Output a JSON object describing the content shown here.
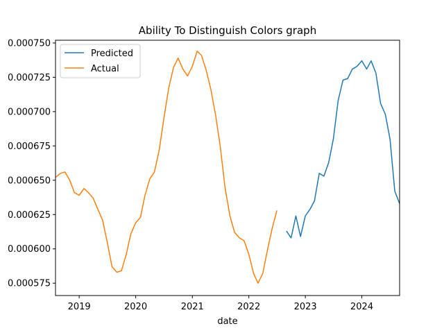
{
  "chart_data": {
    "type": "line",
    "title": "Ability To Distinguish Colors graph",
    "xlabel": "date",
    "ylabel": "",
    "xlim": [
      "2018-08-01",
      "2024-09-01"
    ],
    "ylim": [
      0.000566,
      0.000752
    ],
    "x_ticks": [
      "2019",
      "2020",
      "2021",
      "2022",
      "2023",
      "2024"
    ],
    "y_ticks": [
      "0.000575",
      "0.000600",
      "0.000625",
      "0.000650",
      "0.000675",
      "0.000700",
      "0.000725",
      "0.000750"
    ],
    "legend_position": "top-left",
    "grid": false,
    "series": [
      {
        "name": "Predicted",
        "color": "#1f77b4",
        "points": [
          [
            "2022-09-01",
            0.000613
          ],
          [
            "2022-10-01",
            0.000608
          ],
          [
            "2022-11-01",
            0.000624
          ],
          [
            "2022-12-01",
            0.000609
          ],
          [
            "2023-01-01",
            0.000624
          ],
          [
            "2023-02-01",
            0.000629
          ],
          [
            "2023-03-01",
            0.000635
          ],
          [
            "2023-04-01",
            0.000655
          ],
          [
            "2023-05-01",
            0.000653
          ],
          [
            "2023-06-01",
            0.000663
          ],
          [
            "2023-07-01",
            0.00068
          ],
          [
            "2023-08-01",
            0.000708
          ],
          [
            "2023-09-01",
            0.000723
          ],
          [
            "2023-10-01",
            0.000724
          ],
          [
            "2023-11-01",
            0.000731
          ],
          [
            "2023-12-01",
            0.000733
          ],
          [
            "2024-01-01",
            0.000737
          ],
          [
            "2024-02-01",
            0.000731
          ],
          [
            "2024-03-01",
            0.000737
          ],
          [
            "2024-04-01",
            0.000728
          ],
          [
            "2024-05-01",
            0.000706
          ],
          [
            "2024-06-01",
            0.000698
          ],
          [
            "2024-07-01",
            0.00068
          ],
          [
            "2024-08-01",
            0.000642
          ],
          [
            "2024-09-01",
            0.000633
          ],
          [
            "2024-10-01",
            0.000616
          ]
        ]
      },
      {
        "name": "Actual",
        "color": "#ff7f0e",
        "points": [
          [
            "2018-08-01",
            0.000652
          ],
          [
            "2018-09-01",
            0.000655
          ],
          [
            "2018-10-01",
            0.000656
          ],
          [
            "2018-11-01",
            0.00065
          ],
          [
            "2018-12-01",
            0.000641
          ],
          [
            "2019-01-01",
            0.000639
          ],
          [
            "2019-02-01",
            0.000644
          ],
          [
            "2019-03-01",
            0.000641
          ],
          [
            "2019-04-01",
            0.000637
          ],
          [
            "2019-05-01",
            0.000629
          ],
          [
            "2019-06-01",
            0.000621
          ],
          [
            "2019-07-01",
            0.000605
          ],
          [
            "2019-08-01",
            0.000587
          ],
          [
            "2019-09-01",
            0.000583
          ],
          [
            "2019-10-01",
            0.000584
          ],
          [
            "2019-11-01",
            0.000596
          ],
          [
            "2019-12-01",
            0.000611
          ],
          [
            "2020-01-01",
            0.000619
          ],
          [
            "2020-02-01",
            0.000623
          ],
          [
            "2020-03-01",
            0.000639
          ],
          [
            "2020-04-01",
            0.000651
          ],
          [
            "2020-05-01",
            0.000656
          ],
          [
            "2020-06-01",
            0.000672
          ],
          [
            "2020-07-01",
            0.000695
          ],
          [
            "2020-08-01",
            0.000717
          ],
          [
            "2020-09-01",
            0.000732
          ],
          [
            "2020-10-01",
            0.000739
          ],
          [
            "2020-11-01",
            0.000731
          ],
          [
            "2020-12-01",
            0.000726
          ],
          [
            "2021-01-01",
            0.000733
          ],
          [
            "2021-02-01",
            0.000744
          ],
          [
            "2021-03-01",
            0.000741
          ],
          [
            "2021-04-01",
            0.00073
          ],
          [
            "2021-05-01",
            0.000716
          ],
          [
            "2021-06-01",
            0.000697
          ],
          [
            "2021-07-01",
            0.000674
          ],
          [
            "2021-08-01",
            0.000644
          ],
          [
            "2021-09-01",
            0.000624
          ],
          [
            "2021-10-01",
            0.000612
          ],
          [
            "2021-11-01",
            0.000608
          ],
          [
            "2021-12-01",
            0.000606
          ],
          [
            "2022-01-01",
            0.000596
          ],
          [
            "2022-02-01",
            0.000582
          ],
          [
            "2022-03-01",
            0.000575
          ],
          [
            "2022-04-01",
            0.000582
          ],
          [
            "2022-05-01",
            0.000599
          ],
          [
            "2022-06-01",
            0.000615
          ],
          [
            "2022-07-01",
            0.000628
          ]
        ]
      }
    ]
  }
}
